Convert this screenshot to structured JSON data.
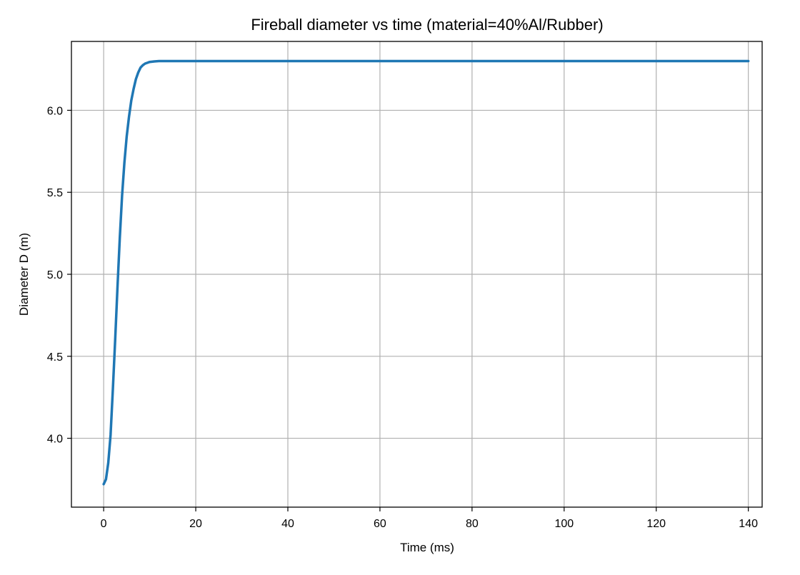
{
  "chart_data": {
    "type": "line",
    "title": "Fireball diameter vs time (material=40%Al/Rubber)",
    "xlabel": "Time (ms)",
    "ylabel": "Diameter D (m)",
    "xlim": [
      -7,
      143
    ],
    "ylim": [
      3.58,
      6.42
    ],
    "xticks": [
      0,
      20,
      40,
      60,
      80,
      100,
      120,
      140
    ],
    "yticks": [
      4.0,
      4.5,
      5.0,
      5.5,
      6.0
    ],
    "ytick_labels": [
      "4.0",
      "4.5",
      "5.0",
      "5.5",
      "6.0"
    ],
    "grid": true,
    "series": [
      {
        "color": "#1f77b4",
        "x": [
          0,
          0.5,
          1,
          1.5,
          2,
          2.5,
          3,
          3.5,
          4,
          4.5,
          5,
          5.5,
          6,
          6.5,
          7,
          7.5,
          8,
          8.5,
          9,
          9.5,
          10,
          11,
          12,
          13,
          14,
          15,
          20,
          40,
          60,
          80,
          100,
          120,
          140
        ],
        "y": [
          3.72,
          3.75,
          3.85,
          4.02,
          4.3,
          4.6,
          4.92,
          5.22,
          5.48,
          5.68,
          5.84,
          5.96,
          6.06,
          6.13,
          6.19,
          6.23,
          6.26,
          6.275,
          6.285,
          6.29,
          6.295,
          6.298,
          6.3,
          6.3,
          6.3,
          6.3,
          6.3,
          6.3,
          6.3,
          6.3,
          6.3,
          6.3,
          6.3
        ]
      }
    ]
  }
}
